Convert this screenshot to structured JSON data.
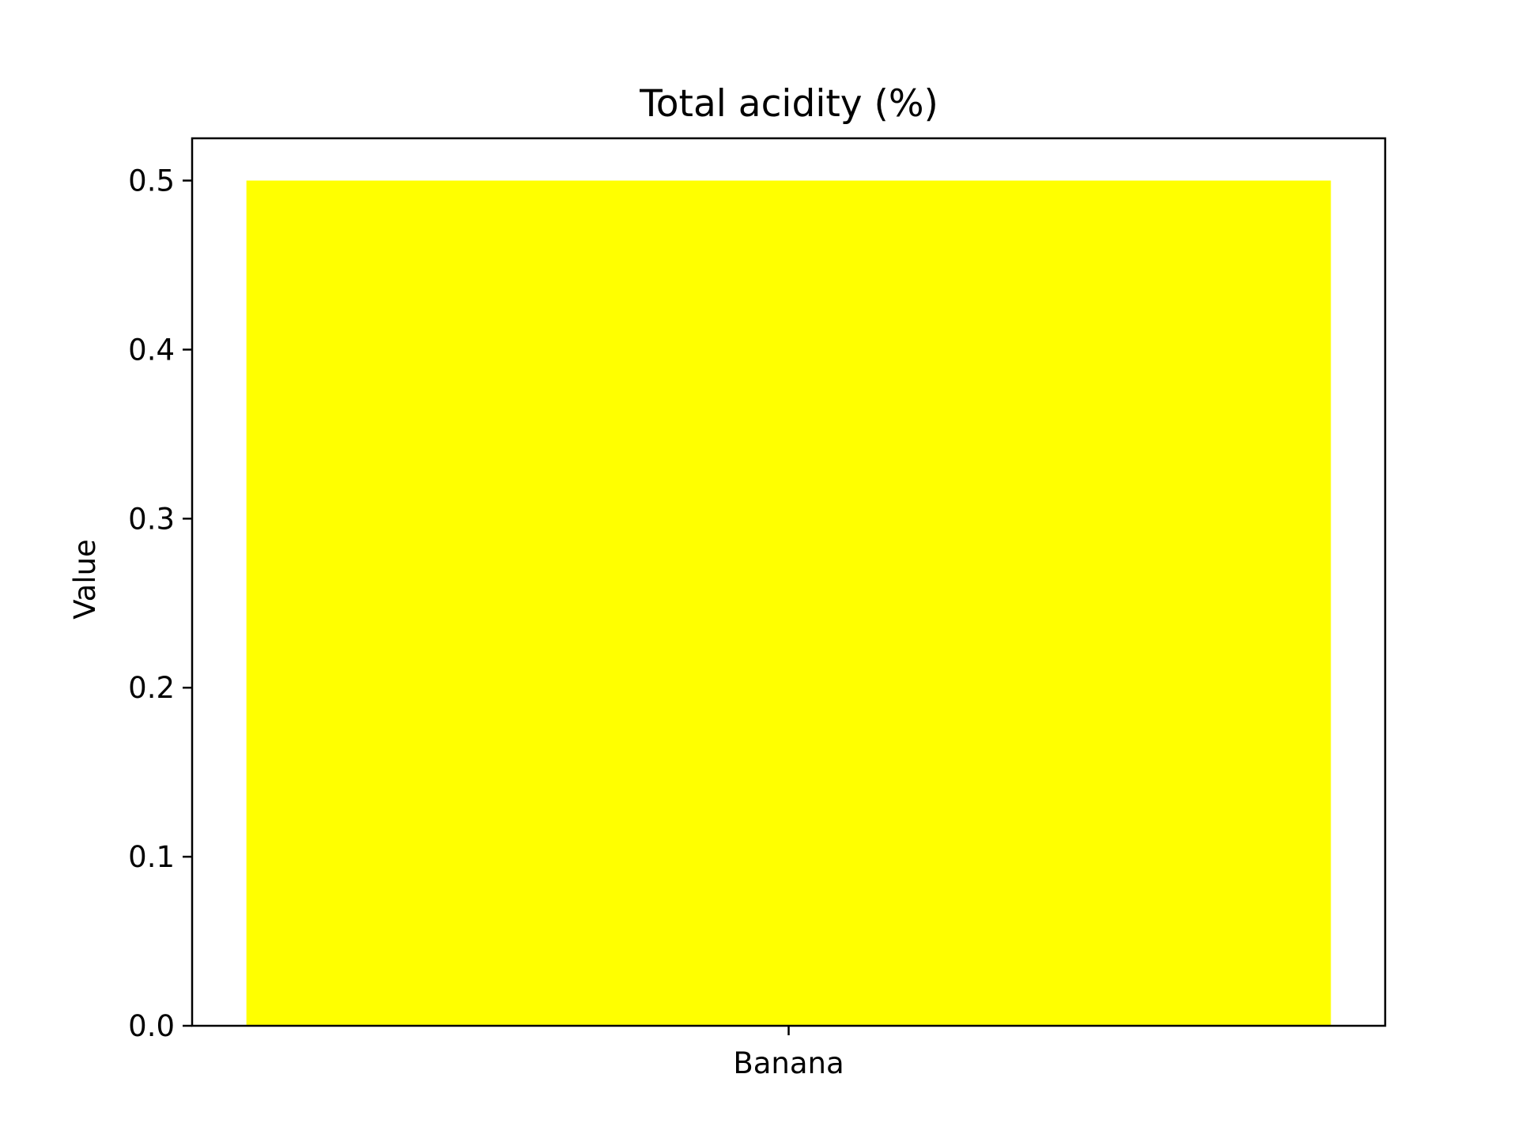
{
  "chart_data": {
    "type": "bar",
    "title": "Total acidity (%)",
    "xlabel": "",
    "ylabel": "Value",
    "categories": [
      "Banana"
    ],
    "values": [
      0.5
    ],
    "ylim": [
      0,
      0.525
    ],
    "yticks": [
      0.0,
      0.1,
      0.2,
      0.3,
      0.4,
      0.5
    ],
    "ytick_labels": [
      "0.0",
      "0.1",
      "0.2",
      "0.3",
      "0.4",
      "0.5"
    ],
    "grid": false,
    "legend": "none",
    "bar_color": "#ffff00"
  }
}
